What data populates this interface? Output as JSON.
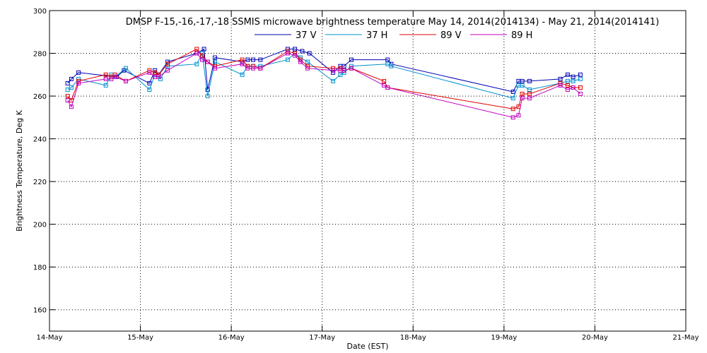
{
  "chart_data": {
    "type": "line",
    "title": "DMSP F-15,-16,-17,-18 SSMIS microwave brightness temperature May 14, 2014(2014134) - May 21, 2014(2014141)",
    "xlabel": "Date (EST)",
    "ylabel": "Brightness Temperature, Deg K",
    "ylim": [
      150,
      300
    ],
    "yticks": [
      160,
      180,
      200,
      220,
      240,
      260,
      280,
      300
    ],
    "xlim": [
      0,
      7
    ],
    "xticks": [
      0,
      1,
      2,
      3,
      4,
      5,
      6,
      7
    ],
    "x_tick_labels": [
      "14-May",
      "15-May",
      "16-May",
      "17-May",
      "18-May",
      "19-May",
      "20-May",
      "21-May"
    ],
    "grid": true,
    "legend_position": "top-center",
    "marker": "square",
    "series": [
      {
        "name": "37 V",
        "color": "#0000b4",
        "x": [
          0.2,
          0.24,
          0.32,
          0.74,
          0.82,
          1.1,
          1.16,
          1.2,
          1.3,
          1.62,
          1.7,
          1.74,
          1.82,
          2.12,
          2.18,
          2.24,
          2.32,
          2.62,
          2.7,
          2.78,
          2.86,
          3.12,
          3.2,
          3.24,
          3.32,
          3.72,
          3.76,
          5.1,
          5.16,
          5.2,
          5.28,
          5.62,
          5.7,
          5.76,
          5.84
        ],
        "y": [
          266,
          268,
          271,
          269,
          272,
          266,
          272,
          270,
          276,
          280,
          282,
          263,
          278,
          276,
          277,
          277,
          277,
          282,
          282,
          281,
          280,
          271,
          274,
          274,
          277,
          277,
          275,
          262,
          267,
          267,
          267,
          268,
          270,
          269,
          270
        ]
      },
      {
        "name": "37 H",
        "color": "#0090d0",
        "x": [
          0.2,
          0.24,
          0.32,
          0.62,
          0.68,
          0.72,
          0.84,
          1.1,
          1.16,
          1.22,
          1.3,
          1.62,
          1.68,
          1.74,
          1.82,
          2.12,
          2.18,
          2.24,
          2.32,
          2.62,
          2.7,
          2.76,
          2.84,
          3.12,
          3.2,
          3.24,
          3.32,
          3.72,
          3.76,
          5.1,
          5.16,
          5.2,
          5.28,
          5.62,
          5.7,
          5.76,
          5.84
        ],
        "y": [
          263,
          264,
          268,
          265,
          270,
          269,
          273,
          263,
          270,
          268,
          274,
          275,
          280,
          260,
          276,
          270,
          274,
          274,
          274,
          277,
          280,
          278,
          276,
          267,
          270,
          271,
          274,
          275,
          274,
          259,
          265,
          265,
          263,
          266,
          267,
          267,
          268
        ]
      },
      {
        "name": "89 V",
        "color": "#e00000",
        "x": [
          0.2,
          0.24,
          0.32,
          0.62,
          0.68,
          0.72,
          0.84,
          1.1,
          1.16,
          1.2,
          1.3,
          1.62,
          1.68,
          1.74,
          1.82,
          2.12,
          2.18,
          2.24,
          2.32,
          2.62,
          2.7,
          2.76,
          2.84,
          3.12,
          3.2,
          3.24,
          3.32,
          3.68,
          3.72,
          5.1,
          5.16,
          5.2,
          5.28,
          5.62,
          5.7,
          5.76,
          5.84
        ],
        "y": [
          260,
          258,
          267,
          270,
          269,
          270,
          267,
          272,
          271,
          270,
          275,
          282,
          279,
          276,
          274,
          277,
          274,
          274,
          273,
          281,
          280,
          277,
          274,
          273,
          273,
          272,
          273,
          267,
          264,
          254,
          255,
          261,
          261,
          266,
          265,
          264,
          264
        ]
      },
      {
        "name": "89 H",
        "color": "#c000c0",
        "x": [
          0.2,
          0.24,
          0.32,
          0.62,
          0.68,
          0.72,
          0.84,
          1.1,
          1.16,
          1.2,
          1.3,
          1.62,
          1.68,
          1.74,
          1.82,
          2.12,
          2.18,
          2.24,
          2.32,
          2.62,
          2.7,
          2.76,
          2.84,
          3.12,
          3.2,
          3.24,
          3.32,
          3.68,
          3.72,
          5.1,
          5.16,
          5.2,
          5.28,
          5.62,
          5.7,
          5.76,
          5.84
        ],
        "y": [
          258,
          255,
          266,
          268,
          268,
          269,
          267,
          271,
          269,
          269,
          272,
          280,
          277,
          276,
          273,
          275,
          273,
          273,
          273,
          280,
          279,
          276,
          273,
          272,
          272,
          272,
          273,
          265,
          264,
          250,
          251,
          259,
          259,
          265,
          263,
          264,
          261
        ]
      }
    ]
  }
}
